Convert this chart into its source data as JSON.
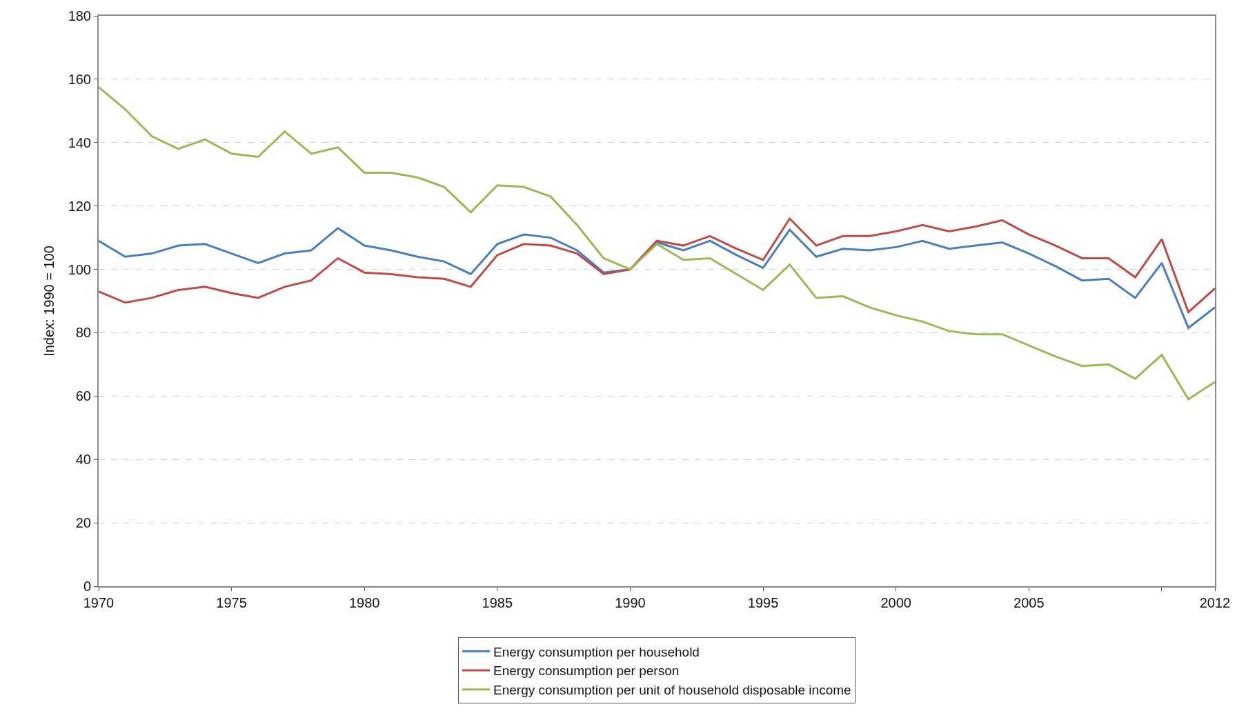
{
  "chart_data": {
    "type": "line",
    "ylabel": "Index: 1990 = 100",
    "x": [
      1970,
      1971,
      1972,
      1973,
      1974,
      1975,
      1976,
      1977,
      1978,
      1979,
      1980,
      1981,
      1982,
      1983,
      1984,
      1985,
      1986,
      1987,
      1988,
      1989,
      1990,
      1991,
      1992,
      1993,
      1994,
      1995,
      1996,
      1997,
      1998,
      1999,
      2000,
      2001,
      2002,
      2003,
      2004,
      2005,
      2006,
      2007,
      2008,
      2009,
      2010,
      2011,
      2012
    ],
    "series": [
      {
        "name": "Energy consumption per household",
        "color": "#4a7ebb",
        "values": [
          109,
          104,
          105,
          107.5,
          108,
          105,
          102,
          105,
          106,
          113,
          107.5,
          106,
          104,
          102.5,
          98.5,
          108,
          111,
          110,
          106,
          99,
          100,
          108.5,
          106,
          109,
          104.5,
          100.5,
          112.5,
          104,
          106.5,
          106,
          107,
          109,
          106.5,
          107.5,
          108.5,
          105,
          101,
          96.5,
          97,
          91,
          102,
          81.5,
          88
        ]
      },
      {
        "name": "Energy consumption per person",
        "color": "#be4b48",
        "values": [
          93,
          89.5,
          91,
          93.5,
          94.5,
          92.5,
          91,
          94.5,
          96.5,
          103.5,
          99,
          98.5,
          97.5,
          97,
          94.5,
          104.5,
          108,
          107.5,
          105,
          98.5,
          100,
          109,
          107.5,
          110.5,
          106.5,
          103,
          116,
          107.5,
          110.5,
          110.5,
          112,
          114,
          112,
          113.5,
          115.5,
          111,
          107.5,
          103.5,
          103.5,
          97.5,
          109.5,
          86.5,
          94
        ]
      },
      {
        "name": "Energy consumption per unit of household disposable income",
        "color": "#98b954",
        "values": [
          157.5,
          150.5,
          142,
          138,
          141,
          136.5,
          135.5,
          143.5,
          136.5,
          138.5,
          130.5,
          130.5,
          129,
          126,
          118,
          126.5,
          126,
          123,
          114,
          103.5,
          100,
          108,
          103,
          103.5,
          98.5,
          93.5,
          101.5,
          91,
          91.5,
          88,
          85.5,
          83.5,
          80.5,
          79.5,
          79.5,
          76,
          72.5,
          69.5,
          70,
          65.5,
          73,
          59,
          64.5
        ]
      }
    ],
    "xlim": [
      1970,
      2012
    ],
    "xticks": [
      1970,
      1975,
      1980,
      1985,
      1990,
      1995,
      2000,
      2005,
      {
        "value": 2010,
        "label": null
      },
      2012
    ],
    "ylim": [
      0,
      180
    ],
    "yticks": [
      0,
      20,
      40,
      60,
      80,
      100,
      120,
      140,
      160,
      180
    ],
    "grid": "y",
    "line_style": "solid",
    "marker": "none",
    "legend": "bottom"
  }
}
